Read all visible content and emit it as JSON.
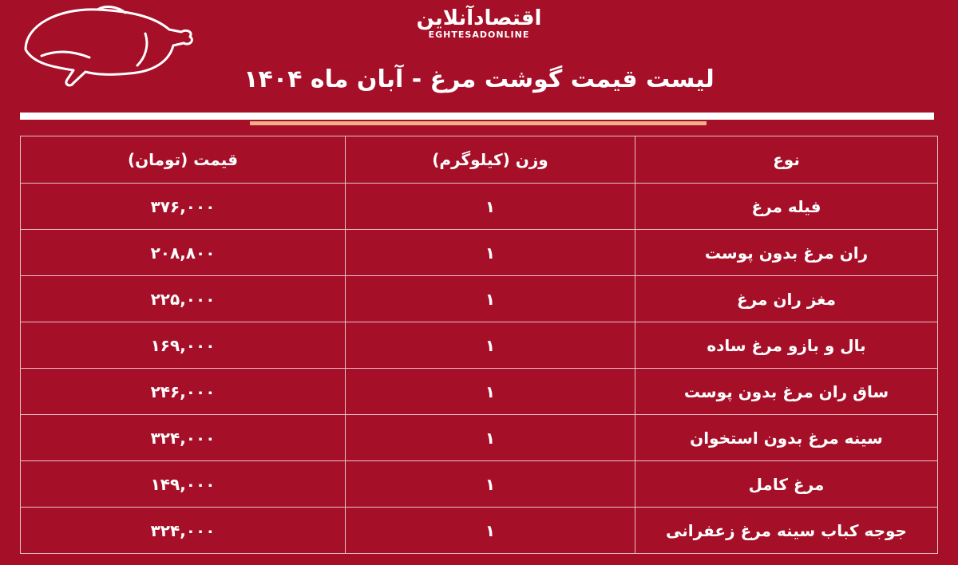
{
  "logo": {
    "fa": "اقتصادآنلاین",
    "en": "EGHTESADONLINE"
  },
  "title": "لیست قیمت گوشت مرغ - آبان ماه ۱۴۰۴",
  "colors": {
    "background": "#a50f28",
    "accent_line": "#f0b08a"
  },
  "icon": "chicken-outline-icon",
  "table": {
    "headers": [
      "نوع",
      "وزن (کیلوگرم)",
      "قیمت (تومان)"
    ],
    "rows": [
      [
        "فیله مرغ",
        "۱",
        "۳۷۶,۰۰۰"
      ],
      [
        "ران مرغ بدون پوست",
        "۱",
        "۲۰۸,۸۰۰"
      ],
      [
        "مغز ران مرغ",
        "۱",
        "۲۲۵,۰۰۰"
      ],
      [
        "بال و بازو مرغ ساده",
        "۱",
        "۱۶۹,۰۰۰"
      ],
      [
        "ساق ران مرغ بدون پوست",
        "۱",
        "۲۴۶,۰۰۰"
      ],
      [
        "سینه مرغ بدون استخوان",
        "۱",
        "۳۲۴,۰۰۰"
      ],
      [
        "مرغ کامل",
        "۱",
        "۱۴۹,۰۰۰"
      ],
      [
        "جوجه کباب سینه مرغ زعفرانی",
        "۱",
        "۳۲۴,۰۰۰"
      ]
    ]
  }
}
